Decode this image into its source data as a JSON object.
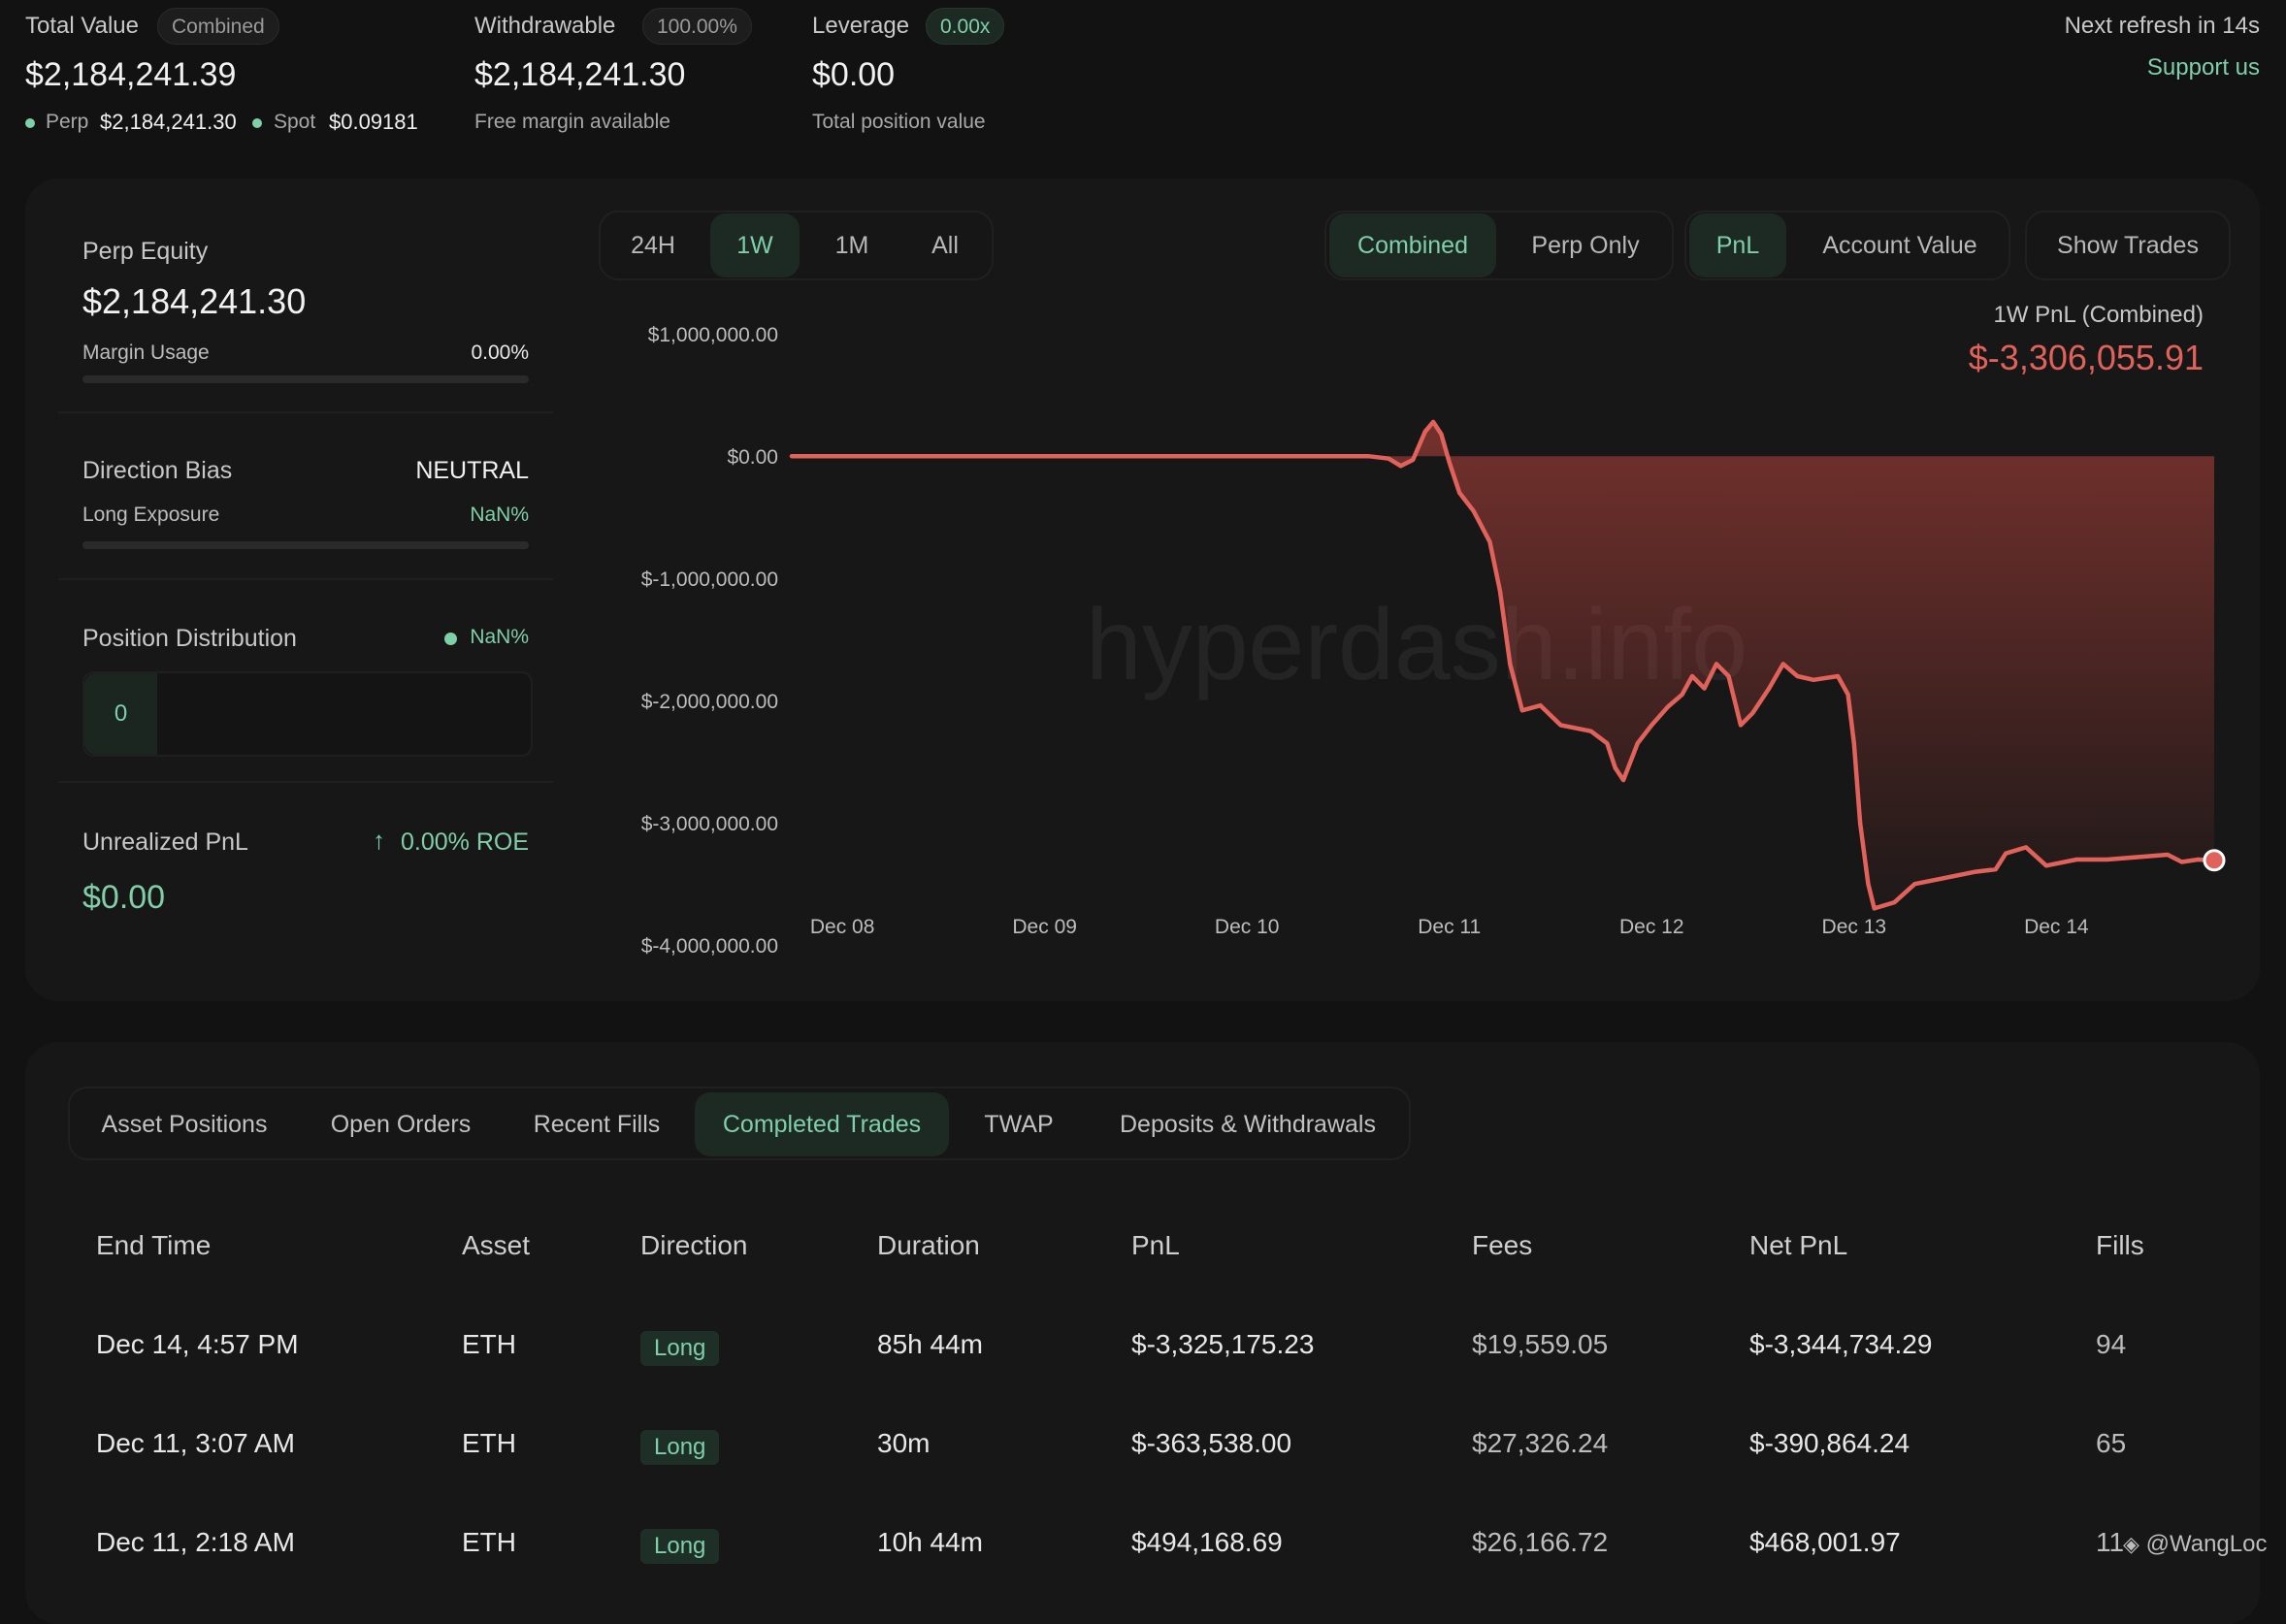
{
  "top": {
    "total_value": {
      "label": "Total Value",
      "badge": "Combined",
      "value": "$2,184,241.39",
      "perp_label": "Perp",
      "perp_value": "$2,184,241.30",
      "spot_label": "Spot",
      "spot_value": "$0.09181"
    },
    "withdrawable": {
      "label": "Withdrawable",
      "badge": "100.00%",
      "value": "$2,184,241.30",
      "sub": "Free margin available"
    },
    "leverage": {
      "label": "Leverage",
      "badge": "0.00x",
      "value": "$0.00",
      "sub": "Total position value"
    },
    "refresh": "Next refresh in 14s",
    "support": "Support us"
  },
  "left_panel": {
    "perp_equity_label": "Perp Equity",
    "perp_equity_value": "$2,184,241.30",
    "margin_usage_label": "Margin Usage",
    "margin_usage_value": "0.00%",
    "direction_bias_label": "Direction Bias",
    "direction_bias_value": "NEUTRAL",
    "long_exposure_label": "Long Exposure",
    "long_exposure_value": "NaN%",
    "position_distribution_label": "Position Distribution",
    "position_distribution_value": "NaN%",
    "position_count": "0",
    "unrealized_pnl_label": "Unrealized PnL",
    "roe": "0.00% ROE",
    "unrealized_pnl_value": "$0.00"
  },
  "controls": {
    "time_ranges": [
      "24H",
      "1W",
      "1M",
      "All"
    ],
    "active_time_range": "1W",
    "mode": [
      "Combined",
      "Perp Only"
    ],
    "metric": [
      "PnL",
      "Account Value"
    ],
    "show_trades": "Show Trades"
  },
  "chart_header": {
    "label": "1W PnL (Combined)",
    "value": "$-3,306,055.91"
  },
  "watermark": "hyperdash.info",
  "chart_data": {
    "type": "area",
    "yticks": [
      "$1,000,000.00",
      "$0.00",
      "$-1,000,000.00",
      "$-2,000,000.00",
      "$-3,000,000.00",
      "$-4,000,000.00"
    ],
    "ytick_values": [
      1000000,
      0,
      -1000000,
      -2000000,
      -3000000,
      -4000000
    ],
    "xticks": [
      "Dec 08",
      "Dec 09",
      "Dec 10",
      "Dec 11",
      "Dec 12",
      "Dec 13",
      "Dec 14"
    ],
    "xtick_positions": [
      0,
      1,
      2,
      3,
      4,
      5,
      6
    ],
    "ylim": [
      -4300000,
      1200000
    ],
    "xlim": [
      -0.25,
      6.78
    ],
    "color": "#e0625a",
    "points": [
      [
        -0.25,
        0
      ],
      [
        2.0,
        0
      ],
      [
        2.6,
        0
      ],
      [
        2.7,
        -20000
      ],
      [
        2.76,
        -80000
      ],
      [
        2.82,
        -30000
      ],
      [
        2.88,
        200000
      ],
      [
        2.92,
        280000
      ],
      [
        2.96,
        180000
      ],
      [
        3.0,
        -50000
      ],
      [
        3.05,
        -300000
      ],
      [
        3.12,
        -450000
      ],
      [
        3.2,
        -700000
      ],
      [
        3.25,
        -1100000
      ],
      [
        3.3,
        -1700000
      ],
      [
        3.36,
        -2080000
      ],
      [
        3.45,
        -2040000
      ],
      [
        3.55,
        -2200000
      ],
      [
        3.7,
        -2250000
      ],
      [
        3.78,
        -2350000
      ],
      [
        3.82,
        -2550000
      ],
      [
        3.86,
        -2650000
      ],
      [
        3.93,
        -2350000
      ],
      [
        4.0,
        -2200000
      ],
      [
        4.08,
        -2050000
      ],
      [
        4.15,
        -1950000
      ],
      [
        4.2,
        -1800000
      ],
      [
        4.26,
        -1900000
      ],
      [
        4.32,
        -1700000
      ],
      [
        4.38,
        -1800000
      ],
      [
        4.44,
        -2200000
      ],
      [
        4.5,
        -2100000
      ],
      [
        4.58,
        -1900000
      ],
      [
        4.65,
        -1700000
      ],
      [
        4.72,
        -1800000
      ],
      [
        4.8,
        -1830000
      ],
      [
        4.92,
        -1800000
      ],
      [
        4.97,
        -1950000
      ],
      [
        5.0,
        -2350000
      ],
      [
        5.03,
        -3000000
      ],
      [
        5.07,
        -3500000
      ],
      [
        5.1,
        -3700000
      ],
      [
        5.2,
        -3650000
      ],
      [
        5.3,
        -3500000
      ],
      [
        5.45,
        -3450000
      ],
      [
        5.6,
        -3400000
      ],
      [
        5.7,
        -3380000
      ],
      [
        5.75,
        -3250000
      ],
      [
        5.85,
        -3200000
      ],
      [
        5.95,
        -3350000
      ],
      [
        6.1,
        -3300000
      ],
      [
        6.25,
        -3300000
      ],
      [
        6.4,
        -3280000
      ],
      [
        6.55,
        -3260000
      ],
      [
        6.62,
        -3320000
      ],
      [
        6.7,
        -3300000
      ],
      [
        6.78,
        -3306055.91
      ]
    ]
  },
  "tabs": [
    "Asset Positions",
    "Open Orders",
    "Recent Fills",
    "Completed Trades",
    "TWAP",
    "Deposits & Withdrawals"
  ],
  "active_tab": "Completed Trades",
  "table": {
    "headers": [
      "End Time",
      "Asset",
      "Direction",
      "Duration",
      "PnL",
      "Fees",
      "Net PnL",
      "Fills"
    ],
    "rows": [
      {
        "end_time": "Dec 14, 4:57 PM",
        "asset": "ETH",
        "direction": "Long",
        "duration": "85h 44m",
        "pnl": "$-3,325,175.23",
        "fees": "$19,559.05",
        "net_pnl": "$-3,344,734.29",
        "fills": "94",
        "pnl_color": "#e0625a",
        "net_color": "#e0625a"
      },
      {
        "end_time": "Dec 11, 3:07 AM",
        "asset": "ETH",
        "direction": "Long",
        "duration": "30m",
        "pnl": "$-363,538.00",
        "fees": "$27,326.24",
        "net_pnl": "$-390,864.24",
        "fills": "65",
        "pnl_color": "#e0625a",
        "net_color": "#e0625a"
      },
      {
        "end_time": "Dec 11, 2:18 AM",
        "asset": "ETH",
        "direction": "Long",
        "duration": "10h 44m",
        "pnl": "$494,168.69",
        "fees": "$26,166.72",
        "net_pnl": "$468,001.97",
        "fills": "11",
        "pnl_color": "#7fcfa8",
        "net_color": "#7fcfa8"
      }
    ]
  },
  "credit": "@WangLoc"
}
